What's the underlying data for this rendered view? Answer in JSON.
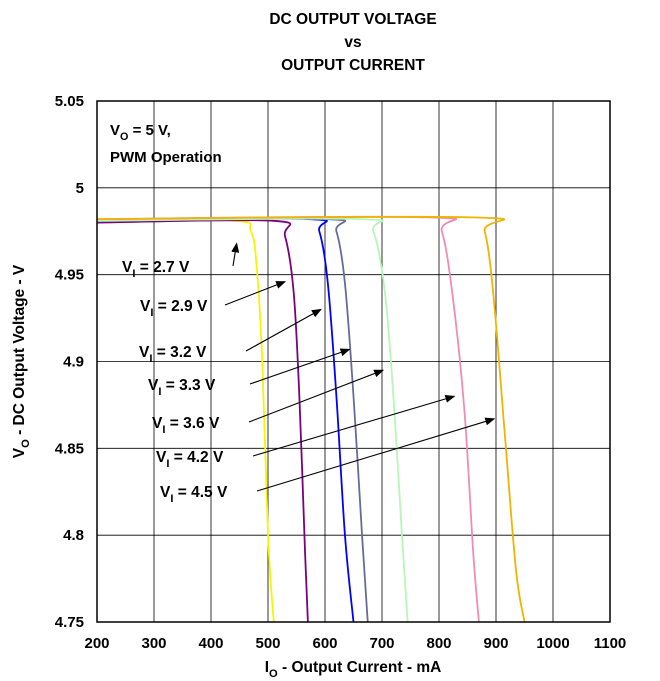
{
  "chart_data": {
    "type": "line",
    "title": [
      "DC OUTPUT VOLTAGE",
      "vs",
      "OUTPUT CURRENT"
    ],
    "xlabel": {
      "prefix": "I",
      "sub": "O",
      "rest": " - Output Current - mA"
    },
    "ylabel": {
      "prefix": "V",
      "sub": "O",
      "rest": " - DC Output Voltage - V"
    },
    "xlim": [
      200,
      1100
    ],
    "ylim": [
      4.75,
      5.05
    ],
    "x_ticks": [
      200,
      300,
      400,
      500,
      600,
      700,
      800,
      900,
      1000,
      1100
    ],
    "y_ticks": [
      4.75,
      4.8,
      4.85,
      4.9,
      4.95,
      5,
      5.05
    ],
    "y_tick_labels": [
      "4.75",
      "4.8",
      "4.85",
      "4.9",
      "4.95",
      "5",
      "5.05"
    ],
    "grid": true,
    "conditions": [
      {
        "prefix": "V",
        "sub": "O",
        "rest": " = 5 V,"
      },
      {
        "prefix": "",
        "sub": "",
        "rest": "PWM Operation"
      }
    ],
    "series": [
      {
        "name": "V_I = 2.7 V",
        "label": {
          "prefix": "V",
          "sub": "I",
          "rest": " = 2.7 V"
        },
        "color": "#f5f500",
        "x": [
          200,
          440,
          470,
          480,
          490,
          500,
          510
        ],
        "y": [
          4.981,
          4.981,
          4.975,
          4.955,
          4.9,
          4.8,
          4.75
        ]
      },
      {
        "name": "V_I = 2.9 V",
        "label": {
          "prefix": "V",
          "sub": "I",
          "rest": " = 2.9 V"
        },
        "color": "#7a0080",
        "x": [
          200,
          510,
          530,
          545,
          555,
          565,
          570
        ],
        "y": [
          4.98,
          4.981,
          4.972,
          4.94,
          4.88,
          4.79,
          4.75
        ]
      },
      {
        "name": "V_I = 3.2 V",
        "label": {
          "prefix": "V",
          "sub": "I",
          "rest": " = 3.2 V"
        },
        "color": "#0000ff",
        "x": [
          200,
          570,
          590,
          605,
          620,
          635,
          650
        ],
        "y": [
          4.981,
          4.982,
          4.975,
          4.945,
          4.88,
          4.8,
          4.75
        ]
      },
      {
        "name": "V_I = 3.3 V",
        "label": {
          "prefix": "V",
          "sub": "I",
          "rest": " = 3.3 V"
        },
        "color": "#6a6a9a",
        "x": [
          200,
          600,
          620,
          635,
          650,
          665,
          675
        ],
        "y": [
          4.981,
          4.982,
          4.975,
          4.945,
          4.88,
          4.8,
          4.75
        ]
      },
      {
        "name": "V_I = 3.6 V",
        "label": {
          "prefix": "V",
          "sub": "I",
          "rest": " = 3.6 V"
        },
        "color": "#b8f5b8",
        "x": [
          200,
          660,
          685,
          705,
          720,
          735,
          745
        ],
        "y": [
          4.981,
          4.982,
          4.975,
          4.94,
          4.88,
          4.8,
          4.75
        ]
      },
      {
        "name": "V_I = 4.2 V",
        "label": {
          "prefix": "V",
          "sub": "I",
          "rest": " = 4.2 V"
        },
        "color": "#f08cb4",
        "x": [
          200,
          780,
          805,
          825,
          845,
          860,
          870
        ],
        "y": [
          4.982,
          4.983,
          4.975,
          4.935,
          4.87,
          4.79,
          4.75
        ]
      },
      {
        "name": "V_I = 4.5 V",
        "label": {
          "prefix": "V",
          "sub": "I",
          "rest": " = 4.5 V"
        },
        "color": "#f0b400",
        "x": [
          200,
          860,
          880,
          895,
          915,
          935,
          950
        ],
        "y": [
          4.982,
          4.983,
          4.975,
          4.94,
          4.86,
          4.78,
          4.75
        ]
      }
    ],
    "arrow_targets": [
      {
        "x": 445,
        "y": 4.968
      },
      {
        "x": 530,
        "y": 4.946
      },
      {
        "x": 593,
        "y": 4.93
      },
      {
        "x": 643,
        "y": 4.907
      },
      {
        "x": 702,
        "y": 4.895
      },
      {
        "x": 827,
        "y": 4.88
      },
      {
        "x": 897,
        "y": 4.867
      }
    ]
  }
}
